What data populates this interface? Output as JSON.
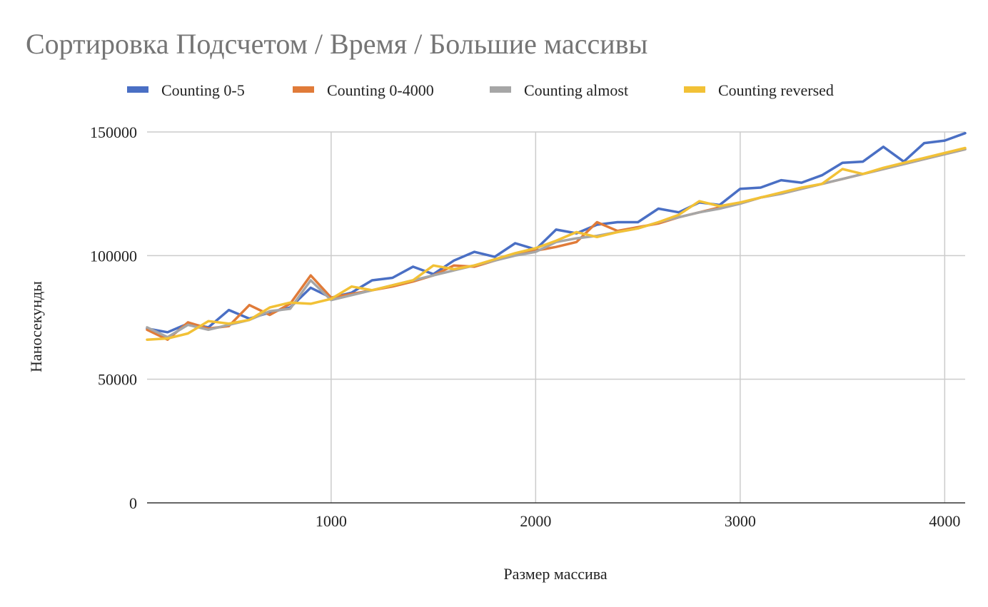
{
  "chart_data": {
    "type": "line",
    "title": "Сортировка Подсчетом / Время / Большие массивы",
    "xlabel": "Размер массива",
    "ylabel": "Наносекунды",
    "xlim": [
      100,
      4100
    ],
    "ylim": [
      0,
      150000
    ],
    "x_ticks": [
      1000,
      2000,
      3000,
      4000
    ],
    "x_tick_labels": [
      "1000",
      "2000",
      "3000",
      "4000"
    ],
    "y_ticks": [
      0,
      50000,
      100000,
      150000
    ],
    "y_tick_labels": [
      "0",
      "50000",
      "100000",
      "150000"
    ],
    "grid": true,
    "legend_position": "top",
    "x": [
      100,
      200,
      300,
      400,
      500,
      600,
      700,
      800,
      900,
      1000,
      1100,
      1200,
      1300,
      1400,
      1500,
      1600,
      1700,
      1800,
      1900,
      2000,
      2100,
      2200,
      2300,
      2400,
      2500,
      2600,
      2700,
      2800,
      2900,
      3000,
      3100,
      3200,
      3300,
      3400,
      3500,
      3600,
      3700,
      3800,
      3900,
      4000,
      4100
    ],
    "series": [
      {
        "name": "Counting 0-5",
        "color": "#4a6fc4",
        "values": [
          70500,
          69000,
          72500,
          71000,
          78000,
          74500,
          77000,
          79000,
          87000,
          83000,
          85000,
          90000,
          91000,
          95500,
          92500,
          98000,
          101500,
          99500,
          105000,
          102500,
          110500,
          109000,
          112500,
          113500,
          113500,
          119000,
          117500,
          121500,
          120500,
          127000,
          127500,
          130500,
          129500,
          132500,
          137500,
          138000,
          144000,
          138000,
          145500,
          146500,
          149500
        ]
      },
      {
        "name": "Counting 0-4000",
        "color": "#e07b39",
        "values": [
          70000,
          66000,
          73000,
          70500,
          71500,
          80000,
          76000,
          80500,
          92000,
          83000,
          84500,
          86000,
          87500,
          89500,
          92000,
          96000,
          95500,
          98000,
          100500,
          102000,
          103500,
          105500,
          113500,
          110000,
          111500,
          113000,
          115500,
          117500,
          119500,
          121000,
          123500,
          125000,
          127000,
          129000,
          131000,
          133000,
          135000,
          137000,
          139000,
          141000,
          143000
        ]
      },
      {
        "name": "Counting almost",
        "color": "#a6a6a6",
        "values": [
          71000,
          67000,
          72000,
          70000,
          72000,
          74000,
          77500,
          78500,
          90000,
          82000,
          84000,
          86000,
          88000,
          90000,
          92000,
          94000,
          96000,
          98000,
          100000,
          101500,
          105500,
          107000,
          108000,
          109500,
          111000,
          113500,
          115500,
          117500,
          119000,
          121000,
          123500,
          125000,
          127000,
          129000,
          131000,
          133000,
          135000,
          137000,
          139000,
          141000,
          143000
        ]
      },
      {
        "name": "Counting reversed",
        "color": "#f2c136",
        "values": [
          66000,
          66500,
          68500,
          73500,
          72500,
          74000,
          79000,
          81000,
          80500,
          82500,
          87500,
          86000,
          88000,
          90000,
          96000,
          94500,
          96000,
          98500,
          101000,
          103000,
          106000,
          109500,
          107500,
          109500,
          111000,
          113500,
          116500,
          122000,
          120000,
          121500,
          123500,
          125500,
          127500,
          129000,
          135000,
          133000,
          135500,
          137500,
          139500,
          141500,
          143500
        ]
      }
    ]
  }
}
